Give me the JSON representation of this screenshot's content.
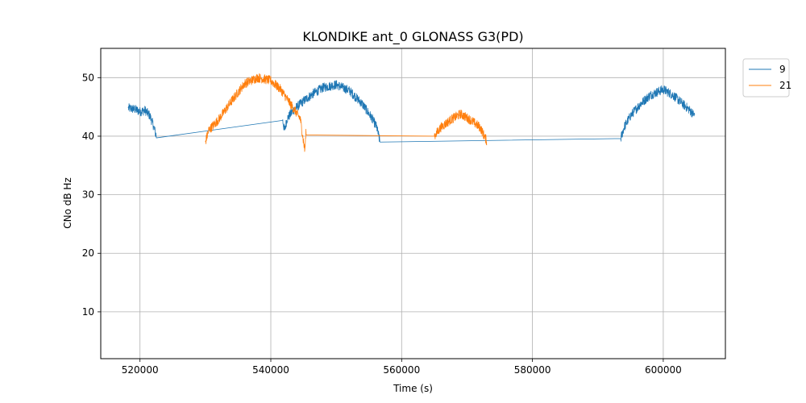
{
  "chart_data": {
    "type": "line",
    "title": "KLONDIKE ant_0 GLONASS G3(PD)",
    "xlabel": "Time (s)",
    "ylabel": "CNo dB Hz",
    "xlim": [
      514000,
      609500
    ],
    "ylim": [
      2,
      55
    ],
    "xticks": [
      520000,
      540000,
      560000,
      580000,
      600000
    ],
    "yticks": [
      10,
      20,
      30,
      40,
      50
    ],
    "grid": true,
    "legend_position": "outside-top-right",
    "series": [
      {
        "name": "9",
        "color": "#1f77b4",
        "noise": 0.8,
        "points": [
          [
            518200,
            44.8
          ],
          [
            519200,
            44.6
          ],
          [
            520000,
            44.2
          ],
          [
            520800,
            44.4
          ],
          [
            521500,
            43.5
          ],
          [
            522000,
            42.0
          ],
          [
            522500,
            40.0
          ],
          [
            541800,
            42.7
          ],
          [
            542100,
            41.0
          ],
          [
            542500,
            43.0
          ],
          [
            543500,
            44.5
          ],
          [
            545000,
            46.0
          ],
          [
            546500,
            47.3
          ],
          [
            548000,
            48.3
          ],
          [
            550000,
            48.8
          ],
          [
            552000,
            47.8
          ],
          [
            554000,
            45.5
          ],
          [
            555500,
            43.0
          ],
          [
            556200,
            41.5
          ],
          [
            556700,
            39.0
          ],
          [
            593500,
            39.6
          ],
          [
            594000,
            41.5
          ],
          [
            595000,
            43.5
          ],
          [
            596500,
            45.5
          ],
          [
            598000,
            47.0
          ],
          [
            600000,
            48.0
          ],
          [
            601500,
            47.0
          ],
          [
            603000,
            45.5
          ],
          [
            604000,
            44.5
          ],
          [
            604800,
            43.5
          ]
        ]
      },
      {
        "name": "21",
        "color": "#ff7f0e",
        "noise": 0.8,
        "points": [
          [
            530000,
            39.0
          ],
          [
            530500,
            41.0
          ],
          [
            532000,
            42.8
          ],
          [
            534000,
            46.0
          ],
          [
            536000,
            49.0
          ],
          [
            538000,
            50.0
          ],
          [
            540000,
            49.5
          ],
          [
            541500,
            48.0
          ],
          [
            543000,
            45.5
          ],
          [
            544500,
            43.0
          ],
          [
            545200,
            37.5
          ],
          [
            545400,
            41.0
          ],
          [
            565000,
            40.0
          ],
          [
            566000,
            41.5
          ],
          [
            567500,
            42.8
          ],
          [
            569000,
            43.8
          ],
          [
            570500,
            42.8
          ],
          [
            572000,
            41.5
          ],
          [
            573000,
            39.2
          ]
        ]
      }
    ]
  }
}
